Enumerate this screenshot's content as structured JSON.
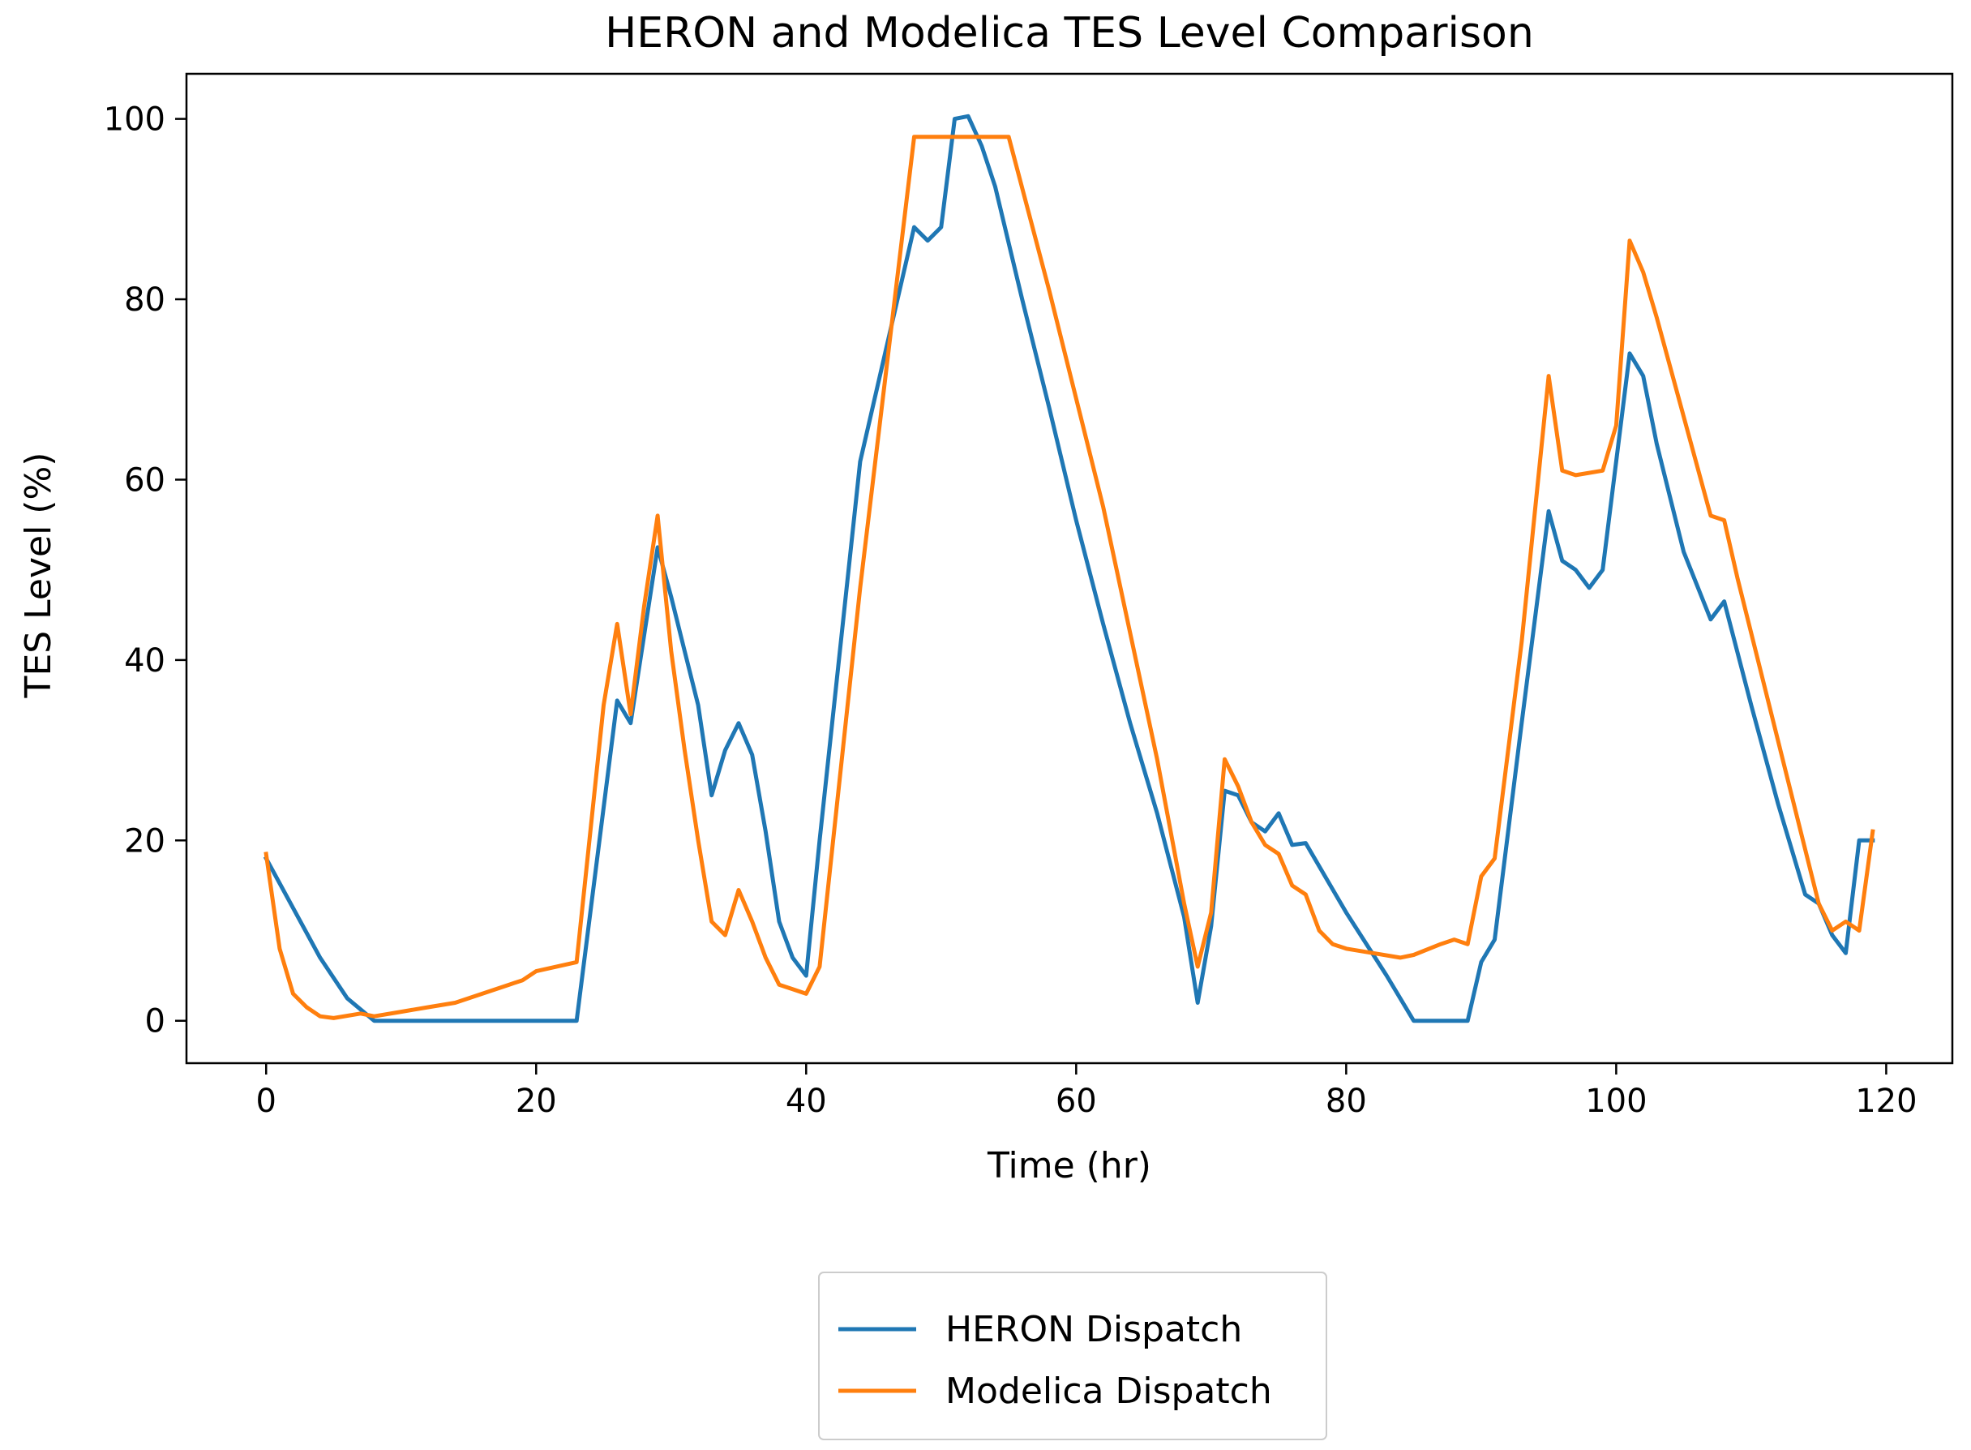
{
  "chart_data": {
    "type": "line",
    "title": "HERON and Modelica TES Level Comparison",
    "xlabel": "Time (hr)",
    "ylabel": "TES Level (%)",
    "xlim": [
      -5.9,
      124.9
    ],
    "ylim": [
      -4.7,
      105.0
    ],
    "xticks": [
      0,
      20,
      40,
      60,
      80,
      100,
      120
    ],
    "yticks": [
      0,
      20,
      40,
      60,
      80,
      100
    ],
    "grid": false,
    "legend_position": "below-center",
    "series": [
      {
        "name": "HERON Dispatch",
        "color": "#1f77b4",
        "x": [
          0,
          2,
          4,
          6,
          8,
          23,
          26,
          27,
          29,
          30,
          31,
          32,
          33,
          34,
          35,
          36,
          37,
          38,
          39,
          40,
          41,
          44,
          46,
          48,
          49,
          50,
          51,
          52,
          53,
          54,
          56,
          58,
          60,
          62,
          64,
          66,
          68,
          69,
          70,
          71,
          72,
          73,
          74,
          75,
          76,
          77,
          80,
          83,
          85,
          89,
          90,
          91,
          93,
          95,
          96,
          97,
          98,
          99,
          101,
          102,
          103,
          105,
          107,
          108,
          110,
          112,
          114,
          115,
          116,
          117,
          118,
          119
        ],
        "y": [
          18,
          12.5,
          7,
          2.5,
          0,
          0,
          35.5,
          33,
          52.5,
          47,
          41,
          35,
          25,
          30,
          33,
          29.5,
          21,
          11,
          7,
          5,
          20,
          62,
          75,
          88,
          86.5,
          88,
          100,
          100.3,
          97,
          92.5,
          80,
          68,
          55.5,
          44,
          33,
          23,
          11.5,
          2,
          10.5,
          25.5,
          25,
          22,
          21,
          23,
          19.5,
          19.7,
          12,
          5,
          0,
          0,
          6.5,
          9,
          33,
          56.5,
          51,
          50,
          48,
          50,
          74,
          71.5,
          64,
          52,
          44.5,
          46.5,
          35,
          24,
          14,
          13,
          9.5,
          7.5,
          20,
          20
        ]
      },
      {
        "name": "Modelica Dispatch",
        "color": "#ff7f0e",
        "x": [
          0,
          1,
          2,
          3,
          4,
          5,
          7,
          8,
          10,
          12,
          14,
          16,
          18,
          19,
          20,
          23,
          25,
          26,
          27,
          28,
          29,
          30,
          31,
          32,
          33,
          34,
          35,
          36,
          37,
          38,
          39,
          40,
          41,
          44,
          46,
          48,
          50,
          52,
          55,
          58,
          60,
          62,
          64,
          66,
          68,
          69,
          70,
          71,
          72,
          73,
          74,
          75,
          76,
          77,
          78,
          79,
          80,
          82,
          84,
          85,
          87,
          88,
          89,
          90,
          91,
          93,
          95,
          96,
          97,
          99,
          100,
          101,
          102,
          103,
          105,
          107,
          108,
          109,
          111,
          113,
          115,
          116,
          117,
          118,
          119
        ],
        "y": [
          18.5,
          8,
          3,
          1.5,
          0.5,
          0.3,
          0.8,
          0.5,
          1,
          1.5,
          2,
          3,
          4,
          4.5,
          5.5,
          6.5,
          35,
          44,
          34,
          46,
          56,
          41,
          30,
          20,
          11,
          9.5,
          14.5,
          11,
          7,
          4,
          3.5,
          3,
          6,
          48,
          73,
          98,
          98,
          98,
          98,
          81,
          69,
          57,
          43,
          29,
          13,
          6,
          12,
          29,
          26,
          22,
          19.5,
          18.5,
          15,
          14,
          10,
          8.5,
          8,
          7.5,
          7,
          7.3,
          8.5,
          9,
          8.5,
          16,
          18,
          42,
          71.5,
          61,
          60.5,
          61,
          66,
          86.5,
          83,
          78,
          67,
          56,
          55.5,
          49,
          37,
          25,
          13,
          10,
          11,
          10,
          21
        ]
      }
    ]
  }
}
